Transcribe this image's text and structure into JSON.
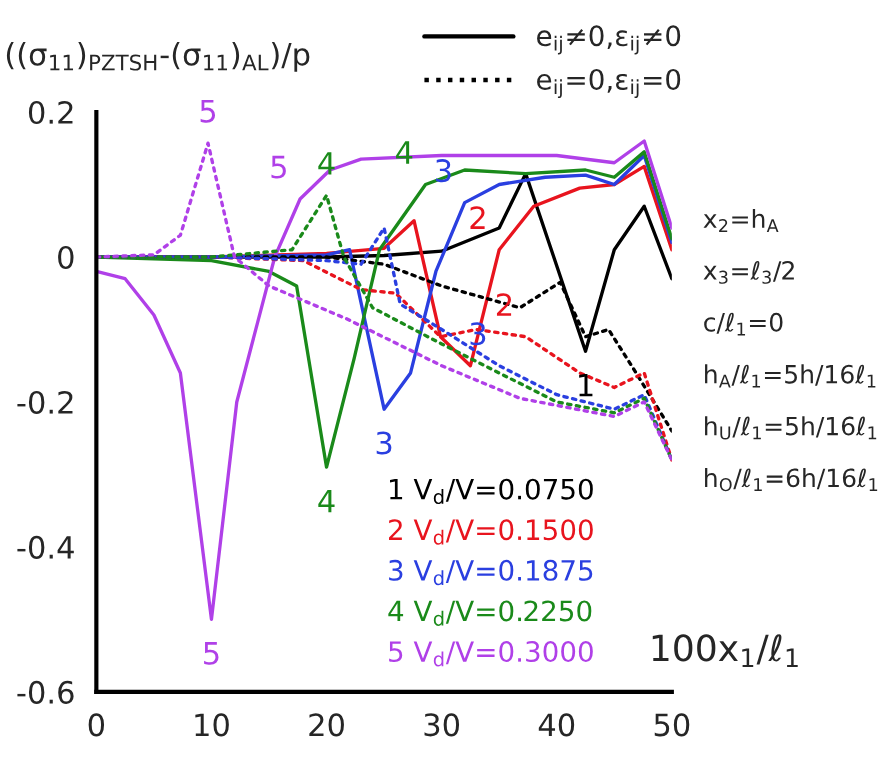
{
  "chart_data": {
    "type": "line",
    "ylabel": "((σ$_{11}$)$_{PZTSH}$-(σ$_{11}$)$_{AL}$)/p",
    "xlabel": "100x$_{1}$/ℓ$_{1}$",
    "xlim": [
      0,
      50
    ],
    "xticks": [
      0,
      10,
      20,
      30,
      40,
      50
    ],
    "ylim": [
      -0.6,
      0.2
    ],
    "yticks": [
      -0.6,
      -0.4,
      -0.2,
      0,
      0.2
    ],
    "grid": false,
    "legend": "bottom right",
    "marker": "none",
    "series": [
      {
        "name": "1 V$_{d}$/V=0.0750",
        "color": "#000000",
        "line_style": "solid",
        "x": [
          0,
          10,
          20,
          25,
          30,
          35,
          37.3,
          42.5,
          45,
          47.6,
          50
        ],
        "values": [
          0,
          0,
          0,
          0.002,
          0.008,
          0.04,
          0.115,
          -0.13,
          0.01,
          0.07,
          -0.03
        ]
      },
      {
        "name": "2 V$_{d}$/V=0.1500",
        "color": "#e8141e",
        "line_style": "solid",
        "x": [
          0,
          10,
          20,
          25,
          27.6,
          29.9,
          32.5,
          35,
          38,
          42,
          45,
          47.6,
          50
        ],
        "values": [
          0,
          0,
          0.005,
          0.012,
          0.05,
          -0.11,
          -0.15,
          0.01,
          0.07,
          0.095,
          0.1,
          0.125,
          0.01
        ]
      },
      {
        "name": "3 V$_{d}$/V=0.1875",
        "color": "#2a3fe0",
        "line_style": "solid",
        "x": [
          0,
          10,
          20,
          22,
          25,
          27.3,
          29.5,
          32,
          35,
          39,
          42.5,
          45,
          47.6,
          50
        ],
        "values": [
          0,
          0,
          0.003,
          0.01,
          -0.21,
          -0.16,
          -0.02,
          0.075,
          0.1,
          0.11,
          0.113,
          0.1,
          0.14,
          0.02
        ]
      },
      {
        "name": "4 V$_{d}$/V=0.2250",
        "color": "#1a8a1a",
        "line_style": "solid",
        "x": [
          0,
          10,
          15,
          17.4,
          20,
          22.4,
          24.6,
          28.6,
          32,
          37.3,
          42.5,
          45,
          47.6,
          50
        ],
        "values": [
          0,
          -0.005,
          -0.02,
          -0.04,
          -0.29,
          -0.14,
          0.01,
          0.1,
          0.12,
          0.115,
          0.12,
          0.11,
          0.145,
          0.025
        ]
      },
      {
        "name": "5 V$_{d}$/V=0.3000",
        "color": "#b040e8",
        "line_style": "solid",
        "x": [
          0,
          2.5,
          5,
          7.3,
          10,
          12.2,
          15.5,
          17.7,
          20.3,
          23,
          30,
          40,
          45,
          47.6,
          50
        ],
        "values": [
          -0.02,
          -0.03,
          -0.08,
          -0.16,
          -0.5,
          -0.2,
          0,
          0.08,
          0.12,
          0.135,
          0.14,
          0.14,
          0.13,
          0.16,
          0.04
        ]
      },
      {
        "color": "#000000",
        "line_style": "dotted",
        "x": [
          0,
          10,
          20,
          25,
          30,
          36.8,
          40.3,
          42.5,
          44.5,
          46.7,
          50
        ],
        "values": [
          0,
          0,
          0,
          -0.01,
          -0.04,
          -0.07,
          -0.035,
          -0.11,
          -0.1,
          -0.155,
          -0.24
        ]
      },
      {
        "color": "#e8141e",
        "line_style": "dotted",
        "x": [
          0,
          10,
          18,
          23,
          26,
          29.9,
          33,
          37.3,
          42,
          45,
          47.6,
          50
        ],
        "values": [
          0,
          0,
          -0.005,
          -0.045,
          -0.05,
          -0.11,
          -0.1,
          -0.11,
          -0.16,
          -0.18,
          -0.16,
          -0.28
        ]
      },
      {
        "color": "#2a3fe0",
        "line_style": "dotted",
        "x": [
          0,
          10,
          20,
          23,
          25,
          26.4,
          30,
          35,
          40,
          45,
          47.6,
          50
        ],
        "values": [
          0,
          0,
          -0.005,
          -0.01,
          0.04,
          -0.065,
          -0.1,
          -0.15,
          -0.19,
          -0.21,
          -0.19,
          -0.28
        ]
      },
      {
        "color": "#1a8a1a",
        "line_style": "dotted",
        "x": [
          0,
          10,
          17,
          20,
          21.5,
          24,
          30,
          35,
          40,
          45,
          47.6,
          50
        ],
        "values": [
          0,
          0,
          0.01,
          0.085,
          0,
          -0.07,
          -0.12,
          -0.16,
          -0.2,
          -0.215,
          -0.195,
          -0.28
        ]
      },
      {
        "color": "#b040e8",
        "line_style": "dotted",
        "x": [
          0,
          5,
          7.3,
          9.7,
          12,
          15,
          21.7,
          30,
          36.8,
          45,
          47.6,
          50
        ],
        "values": [
          0,
          0.003,
          0.03,
          0.157,
          0,
          -0.04,
          -0.085,
          -0.15,
          -0.195,
          -0.22,
          -0.2,
          -0.28
        ]
      }
    ],
    "annotations": [
      "e$_{ij}$≠0,ε$_{ij}$≠0",
      "e$_{ij}$=0,ε$_{ij}$=0",
      "x$_{2}$=h$_{A}$",
      "x$_{3}$=ℓ$_{3}$/2",
      "c/ℓ$_{1}$=0",
      "h$_{A}$/ℓ$_{1}$=5h/16ℓ$_{1}$",
      "h$_{U}$/ℓ$_{1}$=5h/16ℓ$_{1}$",
      "h$_{O}$/ℓ$_{1}$=6h/16ℓ$_{1}$",
      {
        "text": "5",
        "x": 9.7,
        "y": 0.157
      },
      {
        "text": "5",
        "x": 10,
        "y": -0.5
      },
      {
        "text": "5",
        "x": 17.7,
        "y": 0.08
      },
      {
        "text": "4",
        "x": 20,
        "y": 0.085
      },
      {
        "text": "4",
        "x": 28.6,
        "y": 0.1
      },
      {
        "text": "4",
        "x": 20,
        "y": -0.29
      },
      {
        "text": "3",
        "x": 32,
        "y": 0.075
      },
      {
        "text": "3",
        "x": 25,
        "y": -0.21
      },
      {
        "text": "3",
        "x": 35,
        "y": -0.15
      },
      {
        "text": "2",
        "x": 35,
        "y": 0.01
      },
      {
        "text": "2",
        "x": 37.3,
        "y": -0.11
      },
      {
        "text": "1",
        "x": 42.5,
        "y": -0.13
      }
    ]
  }
}
